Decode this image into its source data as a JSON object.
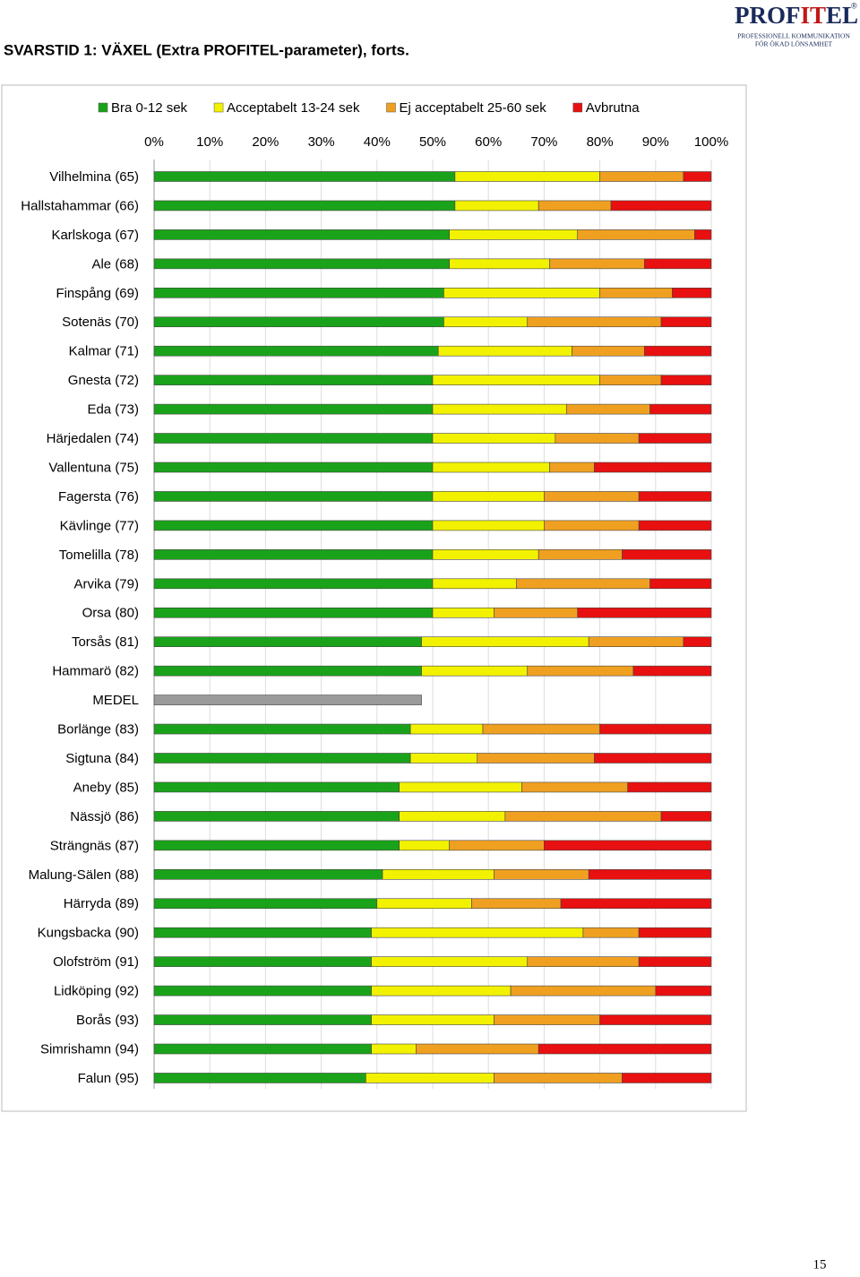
{
  "header": {
    "title": "SVARSTID 1: VÄXEL (Extra PROFITEL-parameter), forts.",
    "logo": {
      "parts": [
        "PROF",
        "IT",
        "EL"
      ],
      "mark": "®",
      "line1": "PROFESSIONELL KOMMUNIKATION",
      "line2": "FÖR ÖKAD LÖNSAMHET"
    }
  },
  "chart_data": {
    "type": "stacked-bar-horizontal",
    "categories": [
      "Vilhelmina (65)",
      "Hallstahammar (66)",
      "Karlskoga (67)",
      "Ale (68)",
      "Finspång (69)",
      "Sotenäs (70)",
      "Kalmar (71)",
      "Gnesta (72)",
      "Eda (73)",
      "Härjedalen (74)",
      "Vallentuna (75)",
      "Fagersta (76)",
      "Kävlinge (77)",
      "Tomelilla (78)",
      "Arvika (79)",
      "Orsa (80)",
      "Torsås (81)",
      "Hammarö (82)",
      "MEDEL",
      "Borlänge (83)",
      "Sigtuna (84)",
      "Aneby (85)",
      "Nässjö (86)",
      "Strängnäs (87)",
      "Malung-Sälen (88)",
      "Härryda (89)",
      "Kungsbacka (90)",
      "Olofström (91)",
      "Lidköping (92)",
      "Borås (93)",
      "Simrishamn (94)",
      "Falun (95)"
    ],
    "series": [
      {
        "name": "Bra 0-12 sek",
        "color": "#1aa31a",
        "values": [
          54,
          54,
          53,
          53,
          52,
          52,
          51,
          50,
          50,
          50,
          50,
          50,
          50,
          50,
          50,
          50,
          48,
          48,
          48,
          46,
          46,
          44,
          44,
          44,
          41,
          40,
          39,
          39,
          39,
          39,
          39,
          38
        ]
      },
      {
        "name": "Acceptabelt 13-24 sek",
        "color": "#f2f200",
        "values": [
          26,
          15,
          23,
          18,
          28,
          15,
          24,
          30,
          24,
          22,
          21,
          20,
          20,
          19,
          15,
          11,
          30,
          19,
          null,
          13,
          12,
          22,
          19,
          9,
          20,
          17,
          38,
          28,
          25,
          22,
          8,
          23
        ]
      },
      {
        "name": "Ej acceptabelt 25-60 sek",
        "color": "#f0a020",
        "values": [
          15,
          13,
          21,
          17,
          13,
          24,
          13,
          11,
          15,
          15,
          8,
          17,
          17,
          15,
          24,
          15,
          17,
          19,
          null,
          21,
          21,
          19,
          28,
          17,
          17,
          16,
          10,
          20,
          26,
          19,
          22,
          23
        ]
      },
      {
        "name": "Avbrutna",
        "color": "#e81010",
        "values": [
          5,
          18,
          3,
          12,
          7,
          9,
          12,
          9,
          11,
          13,
          21,
          13,
          13,
          16,
          11,
          24,
          5,
          14,
          null,
          20,
          21,
          15,
          9,
          30,
          22,
          27,
          13,
          13,
          10,
          20,
          31,
          16
        ]
      }
    ],
    "average_color": "#9a9a9a",
    "xlim": [
      0,
      100
    ],
    "xticks": [
      {
        "value": 0,
        "label": "0%"
      },
      {
        "value": 10,
        "label": "10%"
      },
      {
        "value": 20,
        "label": "20%"
      },
      {
        "value": 30,
        "label": "30%"
      },
      {
        "value": 40,
        "label": "40%"
      },
      {
        "value": 50,
        "label": "50%"
      },
      {
        "value": 60,
        "label": "60%"
      },
      {
        "value": 70,
        "label": "70%"
      },
      {
        "value": 80,
        "label": "80%"
      },
      {
        "value": 90,
        "label": "90%"
      },
      {
        "value": 100,
        "label": "100%"
      }
    ],
    "grid": true,
    "legend": "top"
  },
  "footer": {
    "page": "15"
  }
}
